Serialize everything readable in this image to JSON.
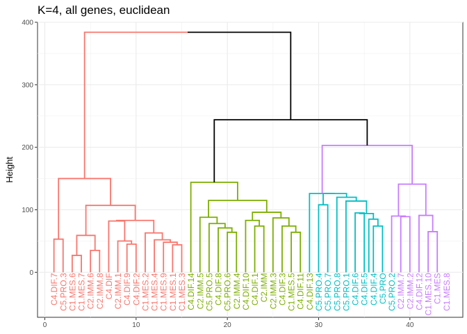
{
  "chart_data": {
    "type": "dendrogram",
    "title": "K=4, all genes, euclidean",
    "ylabel": "Height",
    "xlabel": "",
    "xlim": [
      -0.8,
      45.8
    ],
    "ylim": [
      -72,
      400
    ],
    "x_ticks": [
      0,
      10,
      20,
      30,
      40
    ],
    "y_ticks": [
      0,
      100,
      200,
      300,
      400
    ],
    "grid": true,
    "legend": "none",
    "cluster_colors": {
      "1": "#F8766D",
      "2": "#7CAE00",
      "3": "#00BFC4",
      "4": "#C77CFF",
      "root": "#000000"
    },
    "leaves": [
      {
        "label": "C4.DIF.7",
        "cluster": 1
      },
      {
        "label": "C5.PRO.3",
        "cluster": 1
      },
      {
        "label": "C1.MES.6",
        "cluster": 1
      },
      {
        "label": "C1.MES.7",
        "cluster": 1
      },
      {
        "label": "C2.IMM.6",
        "cluster": 1
      },
      {
        "label": "C2.IMM.8",
        "cluster": 1
      },
      {
        "label": "C4.DIF",
        "cluster": 1
      },
      {
        "label": "C2.IMM.1",
        "cluster": 1
      },
      {
        "label": "C4.DIF.9",
        "cluster": 1
      },
      {
        "label": "C4.DIF.2",
        "cluster": 1
      },
      {
        "label": "C1.MES.2",
        "cluster": 1
      },
      {
        "label": "C1.MES.4",
        "cluster": 1
      },
      {
        "label": "C1.MES.9",
        "cluster": 1
      },
      {
        "label": "C1.MES.1",
        "cluster": 1
      },
      {
        "label": "C1.MES.3",
        "cluster": 1
      },
      {
        "label": "C4.DIF.14",
        "cluster": 2
      },
      {
        "label": "C2.IMM.5",
        "cluster": 2
      },
      {
        "label": "C5.PRO.5",
        "cluster": 2
      },
      {
        "label": "C4.DIF.8",
        "cluster": 2
      },
      {
        "label": "C5.PRO.6",
        "cluster": 2
      },
      {
        "label": "C2.IMM.4",
        "cluster": 2
      },
      {
        "label": "C4.DIF.10",
        "cluster": 2
      },
      {
        "label": "C4.DIF.1",
        "cluster": 2
      },
      {
        "label": "C2.IMM",
        "cluster": 2
      },
      {
        "label": "C2.IMM.3",
        "cluster": 2
      },
      {
        "label": "C4.DIF.3",
        "cluster": 2
      },
      {
        "label": "C1.MES.5",
        "cluster": 2
      },
      {
        "label": "C4.DIF.11",
        "cluster": 2
      },
      {
        "label": "C4.DIF.13",
        "cluster": 2
      },
      {
        "label": "C5.PRO.4",
        "cluster": 3
      },
      {
        "label": "C5.PRO.7",
        "cluster": 3
      },
      {
        "label": "C5.PRO.8",
        "cluster": 3
      },
      {
        "label": "C5.PRO.1",
        "cluster": 3
      },
      {
        "label": "C4.DIF.6",
        "cluster": 3
      },
      {
        "label": "C4.DIF.5",
        "cluster": 3
      },
      {
        "label": "C4.DIF.4",
        "cluster": 3
      },
      {
        "label": "C5.PRO",
        "cluster": 3
      },
      {
        "label": "C5.PRO.2",
        "cluster": 3
      },
      {
        "label": "C2.IMM.7",
        "cluster": 4
      },
      {
        "label": "C2.IMM.2",
        "cluster": 4
      },
      {
        "label": "C4.DIF.12",
        "cluster": 4
      },
      {
        "label": "C1.MES.10",
        "cluster": 4
      },
      {
        "label": "C1.MES",
        "cluster": 4
      },
      {
        "label": "C1.MES.8",
        "cluster": 4
      }
    ],
    "merges": [
      {
        "a": 1,
        "b": 2,
        "h": 53,
        "cluster": 1
      },
      {
        "a": 3,
        "b": 4,
        "h": 27,
        "cluster": 1
      },
      {
        "a": 5,
        "b": 6,
        "h": 35,
        "cluster": 1
      },
      {
        "a": -2,
        "b": -3,
        "h": 59,
        "cluster": 1
      },
      {
        "a": 9,
        "b": 10,
        "h": 45,
        "cluster": 1
      },
      {
        "a": 8,
        "b": -5,
        "h": 50,
        "cluster": 1
      },
      {
        "a": 7,
        "b": -6,
        "h": 82,
        "cluster": 1
      },
      {
        "a": 14,
        "b": 15,
        "h": 44,
        "cluster": 1
      },
      {
        "a": 13,
        "b": -8,
        "h": 48,
        "cluster": 1
      },
      {
        "a": 12,
        "b": -9,
        "h": 52,
        "cluster": 1
      },
      {
        "a": 11,
        "b": -10,
        "h": 63,
        "cluster": 1
      },
      {
        "a": -7,
        "b": -11,
        "h": 83,
        "cluster": 1
      },
      {
        "a": -4,
        "b": -12,
        "h": 107,
        "cluster": 1
      },
      {
        "a": -1,
        "b": -13,
        "h": 150,
        "cluster": 1
      },
      {
        "a": 20,
        "b": 21,
        "h": 64,
        "cluster": 2
      },
      {
        "a": 19,
        "b": -15,
        "h": 71,
        "cluster": 2
      },
      {
        "a": 18,
        "b": -16,
        "h": 78,
        "cluster": 2
      },
      {
        "a": 17,
        "b": -17,
        "h": 88,
        "cluster": 2
      },
      {
        "a": 23,
        "b": 24,
        "h": 74,
        "cluster": 2
      },
      {
        "a": 22,
        "b": -19,
        "h": 83,
        "cluster": 2
      },
      {
        "a": 27,
        "b": 28,
        "h": 64,
        "cluster": 2
      },
      {
        "a": 26,
        "b": -21,
        "h": 74,
        "cluster": 2
      },
      {
        "a": 25,
        "b": -22,
        "h": 87,
        "cluster": 2
      },
      {
        "a": -20,
        "b": -23,
        "h": 96,
        "cluster": 2
      },
      {
        "a": -18,
        "b": -24,
        "h": 115,
        "cluster": 2
      },
      {
        "a": 16,
        "b": -25,
        "h": 144,
        "cluster": 2
      },
      {
        "a": 30,
        "b": 31,
        "h": 108,
        "cluster": 3
      },
      {
        "a": 34,
        "b": 35,
        "h": 95,
        "cluster": 3
      },
      {
        "a": 36,
        "b": 37,
        "h": 74,
        "cluster": 3
      },
      {
        "a": 35.5,
        "b": -29,
        "h": 85,
        "cluster": 3
      },
      {
        "a": -28,
        "b": -30,
        "h": 94,
        "cluster": 3
      },
      {
        "a": 33,
        "b": -31,
        "h": 114,
        "cluster": 3
      },
      {
        "a": 32,
        "b": -32,
        "h": 120,
        "cluster": 3
      },
      {
        "a": -27,
        "b": -33,
        "h": 126,
        "cluster": 3
      },
      {
        "a": 29,
        "b": -34,
        "h": 126,
        "cluster": 3
      },
      {
        "a": 39,
        "b": 40,
        "h": 89,
        "cluster": 4
      },
      {
        "a": 38,
        "b": -36,
        "h": 90,
        "cluster": 4
      },
      {
        "a": 42,
        "b": 43,
        "h": 65,
        "cluster": 4
      },
      {
        "a": 41,
        "b": -38,
        "h": 91,
        "cluster": 4
      },
      {
        "a": -37,
        "b": -39,
        "h": 141,
        "cluster": 4
      },
      {
        "a": -35,
        "b": -40,
        "h": 203,
        "cluster": 4
      },
      {
        "a": -26,
        "b": -41,
        "h": 244,
        "cluster": "root"
      },
      {
        "a": -14,
        "b": -42,
        "h": 384,
        "cluster": "root"
      }
    ]
  }
}
